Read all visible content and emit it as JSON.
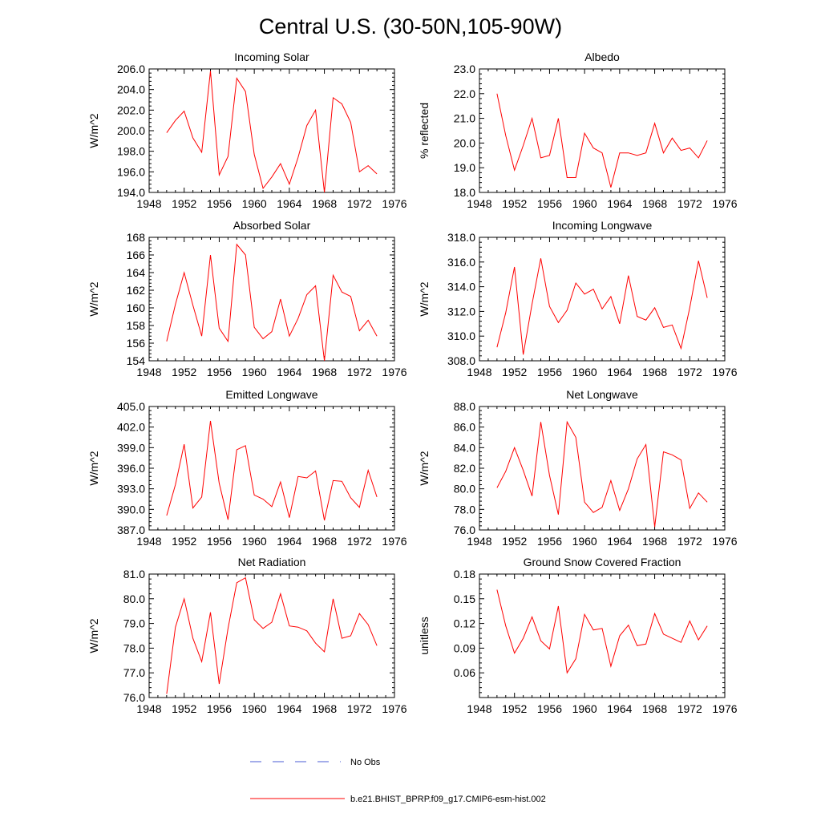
{
  "figure": {
    "title": "Central U.S. (30-50N,105-90W)"
  },
  "legend": {
    "obs_label": "No Obs",
    "obs_color": "#4a5bd6",
    "model_label": "b.e21.BHIST_BPRP.f09_g17.CMIP6-esm-hist.002",
    "model_color": "#ff0000"
  },
  "chart_data": [
    {
      "type": "line",
      "title": "Incoming Solar",
      "xlabel": "",
      "ylabel": "W/m^2",
      "xlim": [
        1948,
        1976
      ],
      "xticks": [
        1948,
        1952,
        1956,
        1960,
        1964,
        1968,
        1972,
        1976
      ],
      "ylim": [
        194.0,
        206.0
      ],
      "yticks": [
        "194.0",
        "196.0",
        "198.0",
        "200.0",
        "202.0",
        "204.0",
        "206.0"
      ],
      "grid": false,
      "x": [
        1950,
        1951,
        1952,
        1953,
        1954,
        1955,
        1956,
        1957,
        1958,
        1959,
        1960,
        1961,
        1962,
        1963,
        1964,
        1965,
        1966,
        1967,
        1968,
        1969,
        1970,
        1971,
        1972,
        1973,
        1974
      ],
      "series": [
        {
          "color": "#ff0000",
          "values": [
            199.8,
            201.0,
            201.9,
            199.3,
            197.9,
            205.8,
            195.7,
            197.5,
            205.1,
            203.8,
            197.7,
            194.4,
            195.5,
            196.8,
            194.8,
            197.4,
            200.5,
            202.0,
            194.0,
            203.2,
            202.6,
            200.8,
            196.0,
            196.6,
            195.8
          ]
        }
      ]
    },
    {
      "type": "line",
      "title": "Albedo",
      "xlabel": "",
      "ylabel": "% reflected",
      "xlim": [
        1948,
        1976
      ],
      "xticks": [
        1948,
        1952,
        1956,
        1960,
        1964,
        1968,
        1972,
        1976
      ],
      "ylim": [
        18.0,
        23.0
      ],
      "yticks": [
        "18.0",
        "19.0",
        "20.0",
        "21.0",
        "22.0",
        "23.0"
      ],
      "grid": false,
      "x": [
        1950,
        1951,
        1952,
        1953,
        1954,
        1955,
        1956,
        1957,
        1958,
        1959,
        1960,
        1961,
        1962,
        1963,
        1964,
        1965,
        1966,
        1967,
        1968,
        1969,
        1970,
        1971,
        1972,
        1973,
        1974
      ],
      "series": [
        {
          "color": "#ff0000",
          "values": [
            22.0,
            20.3,
            18.9,
            19.9,
            21.0,
            19.4,
            19.5,
            21.0,
            18.6,
            18.6,
            20.4,
            19.8,
            19.6,
            18.2,
            19.6,
            19.6,
            19.5,
            19.6,
            20.8,
            19.6,
            20.2,
            19.7,
            19.8,
            19.4,
            20.1
          ]
        }
      ]
    },
    {
      "type": "line",
      "title": "Absorbed Solar",
      "xlabel": "",
      "ylabel": "W/m^2",
      "xlim": [
        1948,
        1976
      ],
      "xticks": [
        1948,
        1952,
        1956,
        1960,
        1964,
        1968,
        1972,
        1976
      ],
      "ylim": [
        154,
        168
      ],
      "yticks": [
        "154",
        "156",
        "158",
        "160",
        "162",
        "164",
        "166",
        "168"
      ],
      "grid": false,
      "x": [
        1950,
        1951,
        1952,
        1953,
        1954,
        1955,
        1956,
        1957,
        1958,
        1959,
        1960,
        1961,
        1962,
        1963,
        1964,
        1965,
        1966,
        1967,
        1968,
        1969,
        1970,
        1971,
        1972,
        1973,
        1974
      ],
      "series": [
        {
          "color": "#ff0000",
          "values": [
            156.2,
            160.4,
            164.0,
            160.3,
            156.8,
            166.0,
            157.7,
            156.2,
            167.2,
            166.0,
            157.8,
            156.5,
            157.3,
            161.0,
            156.8,
            158.8,
            161.5,
            162.5,
            154.0,
            163.7,
            161.8,
            161.3,
            157.4,
            158.6,
            156.8
          ]
        }
      ]
    },
    {
      "type": "line",
      "title": "Incoming Longwave",
      "xlabel": "",
      "ylabel": "W/m^2",
      "xlim": [
        1948,
        1976
      ],
      "xticks": [
        1948,
        1952,
        1956,
        1960,
        1964,
        1968,
        1972,
        1976
      ],
      "ylim": [
        308.0,
        318.0
      ],
      "yticks": [
        "308.0",
        "310.0",
        "312.0",
        "314.0",
        "316.0",
        "318.0"
      ],
      "grid": false,
      "x": [
        1950,
        1951,
        1952,
        1953,
        1954,
        1955,
        1956,
        1957,
        1958,
        1959,
        1960,
        1961,
        1962,
        1963,
        1964,
        1965,
        1966,
        1967,
        1968,
        1969,
        1970,
        1971,
        1972,
        1973,
        1974
      ],
      "series": [
        {
          "color": "#ff0000",
          "values": [
            309.1,
            311.9,
            315.6,
            308.5,
            312.6,
            316.3,
            312.4,
            311.1,
            312.1,
            314.3,
            313.4,
            313.8,
            312.2,
            313.2,
            311.0,
            314.9,
            311.6,
            311.3,
            312.3,
            310.7,
            310.9,
            309.0,
            312.3,
            316.1,
            313.1
          ]
        }
      ]
    },
    {
      "type": "line",
      "title": "Emitted Longwave",
      "xlabel": "",
      "ylabel": "W/m^2",
      "xlim": [
        1948,
        1976
      ],
      "xticks": [
        1948,
        1952,
        1956,
        1960,
        1964,
        1968,
        1972,
        1976
      ],
      "ylim": [
        387.0,
        405.0
      ],
      "yticks": [
        "387.0",
        "390.0",
        "393.0",
        "396.0",
        "399.0",
        "402.0",
        "405.0"
      ],
      "grid": false,
      "x": [
        1950,
        1951,
        1952,
        1953,
        1954,
        1955,
        1956,
        1957,
        1958,
        1959,
        1960,
        1961,
        1962,
        1963,
        1964,
        1965,
        1966,
        1967,
        1968,
        1969,
        1970,
        1971,
        1972,
        1973,
        1974
      ],
      "series": [
        {
          "color": "#ff0000",
          "values": [
            389.1,
            393.6,
            399.5,
            390.2,
            391.8,
            402.9,
            393.8,
            388.5,
            398.7,
            399.3,
            392.1,
            391.5,
            390.4,
            394.0,
            388.8,
            394.8,
            394.6,
            395.6,
            388.4,
            394.2,
            394.1,
            391.7,
            390.3,
            395.7,
            391.8
          ]
        }
      ]
    },
    {
      "type": "line",
      "title": "Net Longwave",
      "xlabel": "",
      "ylabel": "W/m^2",
      "xlim": [
        1948,
        1976
      ],
      "xticks": [
        1948,
        1952,
        1956,
        1960,
        1964,
        1968,
        1972,
        1976
      ],
      "ylim": [
        76.0,
        88.0
      ],
      "yticks": [
        "76.0",
        "78.0",
        "80.0",
        "82.0",
        "84.0",
        "86.0",
        "88.0"
      ],
      "grid": false,
      "x": [
        1950,
        1951,
        1952,
        1953,
        1954,
        1955,
        1956,
        1957,
        1958,
        1959,
        1960,
        1961,
        1962,
        1963,
        1964,
        1965,
        1966,
        1967,
        1968,
        1969,
        1970,
        1971,
        1972,
        1973,
        1974
      ],
      "series": [
        {
          "color": "#ff0000",
          "values": [
            80.1,
            81.7,
            84.0,
            81.8,
            79.3,
            86.5,
            81.3,
            77.5,
            86.5,
            85.0,
            78.7,
            77.7,
            78.2,
            80.8,
            77.9,
            80.0,
            82.9,
            84.3,
            76.3,
            83.6,
            83.3,
            82.8,
            78.1,
            79.6,
            78.7
          ]
        }
      ]
    },
    {
      "type": "line",
      "title": "Net Radiation",
      "xlabel": "",
      "ylabel": "W/m^2",
      "xlim": [
        1948,
        1976
      ],
      "xticks": [
        1948,
        1952,
        1956,
        1960,
        1964,
        1968,
        1972,
        1976
      ],
      "ylim": [
        76.0,
        81.0
      ],
      "yticks": [
        "76.0",
        "77.0",
        "78.0",
        "79.0",
        "80.0",
        "81.0"
      ],
      "grid": false,
      "x": [
        1950,
        1951,
        1952,
        1953,
        1954,
        1955,
        1956,
        1957,
        1958,
        1959,
        1960,
        1961,
        1962,
        1963,
        1964,
        1965,
        1966,
        1967,
        1968,
        1969,
        1970,
        1971,
        1972,
        1973,
        1974
      ],
      "series": [
        {
          "color": "#ff0000",
          "values": [
            76.15,
            78.85,
            80.0,
            78.4,
            77.45,
            79.45,
            76.55,
            78.8,
            80.65,
            80.85,
            79.15,
            78.8,
            79.05,
            80.2,
            78.9,
            78.85,
            78.7,
            78.2,
            77.85,
            80.0,
            78.4,
            78.5,
            79.4,
            78.95,
            78.1
          ]
        }
      ]
    },
    {
      "type": "line",
      "title": "Ground Snow Covered Fraction",
      "xlabel": "",
      "ylabel": "unitless",
      "xlim": [
        1948,
        1976
      ],
      "xticks": [
        1948,
        1952,
        1956,
        1960,
        1964,
        1968,
        1972,
        1976
      ],
      "ylim": [
        0.03,
        0.18
      ],
      "yticks": [
        "0.06",
        "0.09",
        "0.12",
        "0.15",
        "0.18"
      ],
      "grid": false,
      "x": [
        1950,
        1951,
        1952,
        1953,
        1954,
        1955,
        1956,
        1957,
        1958,
        1959,
        1960,
        1961,
        1962,
        1963,
        1964,
        1965,
        1966,
        1967,
        1968,
        1969,
        1970,
        1971,
        1972,
        1973,
        1974
      ],
      "series": [
        {
          "color": "#ff0000",
          "values": [
            0.161,
            0.117,
            0.084,
            0.102,
            0.128,
            0.099,
            0.089,
            0.141,
            0.06,
            0.077,
            0.131,
            0.112,
            0.114,
            0.068,
            0.105,
            0.118,
            0.093,
            0.095,
            0.132,
            0.107,
            0.102,
            0.097,
            0.123,
            0.1,
            0.117
          ]
        }
      ]
    }
  ]
}
